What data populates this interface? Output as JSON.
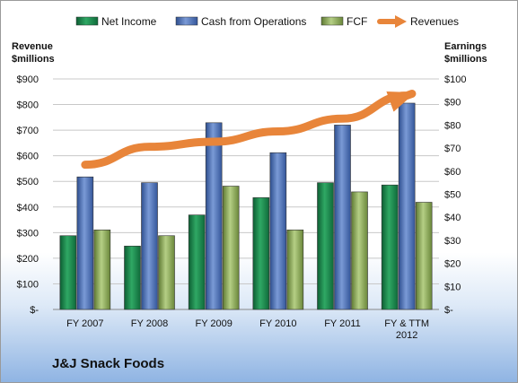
{
  "chart_data": {
    "type": "bar",
    "title": "J&J Snack Foods",
    "categories": [
      "FY 2007",
      "FY 2008",
      "FY 2009",
      "FY 2010",
      "FY 2011",
      "FY & TTM 2012"
    ],
    "category_lines": [
      [
        "FY 2007"
      ],
      [
        "FY 2008"
      ],
      [
        "FY 2009"
      ],
      [
        "FY 2010"
      ],
      [
        "FY 2011"
      ],
      [
        "FY & TTM",
        "2012"
      ]
    ],
    "y_left": {
      "label_lines": [
        "Revenue",
        "$millions"
      ],
      "range": [
        0,
        900
      ],
      "ticks": [
        0,
        100,
        200,
        300,
        400,
        500,
        600,
        700,
        800,
        900
      ],
      "tick_labels": [
        "$-",
        "$100",
        "$200",
        "$300",
        "$400",
        "$500",
        "$600",
        "$700",
        "$800",
        "$900"
      ]
    },
    "y_right": {
      "label_lines": [
        "Earnings",
        "$millions"
      ],
      "range": [
        0,
        100
      ],
      "ticks": [
        0,
        10,
        20,
        30,
        40,
        50,
        60,
        70,
        80,
        90,
        100
      ],
      "tick_labels": [
        "$-",
        "$10",
        "$20",
        "$30",
        "$40",
        "$50",
        "$60",
        "$70",
        "$80",
        "$90",
        "$100"
      ]
    },
    "series": [
      {
        "name": "Net Income",
        "kind": "bar",
        "axis": "right",
        "color": "#1f8a50",
        "values": [
          32,
          27.5,
          41,
          48.5,
          55,
          54
        ]
      },
      {
        "name": "Cash from Operations",
        "kind": "bar",
        "axis": "right",
        "color": "#4f72b8",
        "values": [
          57.5,
          55,
          81,
          68,
          80,
          89.5
        ]
      },
      {
        "name": "FCF",
        "kind": "bar",
        "axis": "right",
        "color": "#8fae5a",
        "values": [
          34.5,
          32,
          53.5,
          34.5,
          51,
          46.5
        ]
      },
      {
        "name": "Revenues",
        "kind": "line",
        "axis": "left",
        "color": "#e8853a",
        "values": [
          565,
          635,
          655,
          695,
          745,
          835
        ]
      }
    ],
    "grid": true,
    "legend": "top"
  }
}
